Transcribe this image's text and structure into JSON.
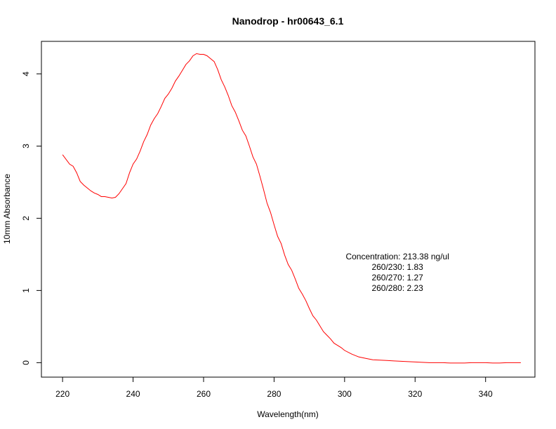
{
  "chart_data": {
    "type": "line",
    "title": "Nanodrop - hr00643_6.1",
    "xlabel": "Wavelength(nm)",
    "ylabel": "10mm Absorbance",
    "xlim": [
      214,
      354
    ],
    "ylim": [
      -0.2,
      4.45
    ],
    "xticks": [
      220,
      240,
      260,
      280,
      300,
      320,
      340
    ],
    "yticks": [
      0,
      1,
      2,
      3,
      4
    ],
    "grid": false,
    "line_color": "#ff0000",
    "series": [
      {
        "x": [
          220,
          222,
          223,
          224,
          225,
          226,
          227,
          228,
          229,
          230,
          231,
          232,
          233,
          234,
          235,
          236,
          237,
          238,
          239,
          240,
          241,
          242,
          243,
          244,
          245,
          246,
          247,
          248,
          249,
          250,
          251,
          252,
          253,
          254,
          255,
          256,
          257,
          258,
          259,
          260,
          261,
          262,
          263,
          264,
          265,
          266,
          267,
          268,
          269,
          270,
          271,
          272,
          273,
          274,
          275,
          276,
          277,
          278,
          279,
          280,
          281,
          282,
          283,
          284,
          285,
          286,
          287,
          288,
          289,
          290,
          291,
          292,
          293,
          294,
          295,
          296,
          297,
          298,
          299,
          300,
          302,
          304,
          306,
          308,
          310,
          312,
          314,
          316,
          318,
          320,
          322,
          324,
          326,
          328,
          330,
          332,
          334,
          336,
          338,
          340,
          342,
          344,
          346,
          348,
          350
        ],
        "y": [
          2.88,
          2.75,
          2.72,
          2.63,
          2.51,
          2.46,
          2.42,
          2.38,
          2.35,
          2.33,
          2.3,
          2.3,
          2.29,
          2.28,
          2.29,
          2.34,
          2.41,
          2.48,
          2.63,
          2.75,
          2.82,
          2.93,
          3.06,
          3.16,
          3.29,
          3.38,
          3.45,
          3.55,
          3.66,
          3.72,
          3.8,
          3.9,
          3.97,
          4.05,
          4.13,
          4.18,
          4.25,
          4.28,
          4.27,
          4.27,
          4.25,
          4.21,
          4.17,
          4.06,
          3.92,
          3.82,
          3.7,
          3.56,
          3.47,
          3.35,
          3.22,
          3.14,
          3.0,
          2.85,
          2.75,
          2.58,
          2.4,
          2.21,
          2.08,
          1.91,
          1.75,
          1.65,
          1.49,
          1.36,
          1.28,
          1.16,
          1.03,
          0.95,
          0.86,
          0.75,
          0.65,
          0.59,
          0.51,
          0.43,
          0.38,
          0.33,
          0.27,
          0.24,
          0.21,
          0.17,
          0.12,
          0.08,
          0.06,
          0.04,
          0.035,
          0.03,
          0.025,
          0.02,
          0.015,
          0.01,
          0.005,
          0.0,
          0.0,
          0.0,
          -0.005,
          -0.005,
          -0.005,
          0.0,
          0.0,
          0.0,
          -0.005,
          -0.005,
          0.0,
          0.0,
          0.0
        ]
      }
    ],
    "annotations": [
      "Concentration: 213.38 ng/ul",
      "260/230: 1.83",
      "260/270: 1.27",
      "260/280: 2.23"
    ]
  }
}
